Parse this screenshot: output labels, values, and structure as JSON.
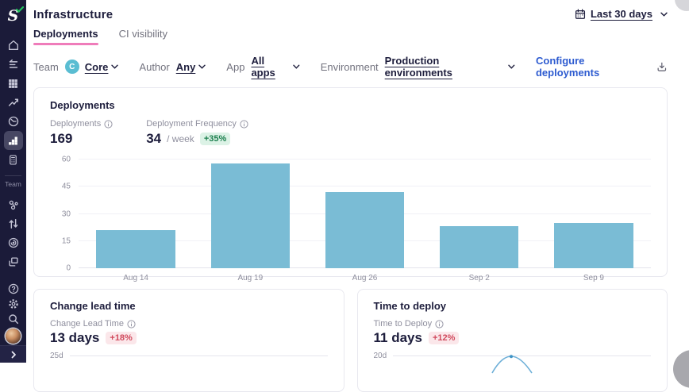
{
  "colors": {
    "sidebar_bg": "#1b1b39",
    "sidebar_active_bg": "#474763",
    "accent_pink": "#ef7cba",
    "bar_blue": "#7abcd5",
    "line_blue": "#6fb0d8",
    "link_blue": "#2d5bd0",
    "navy_text": "#1d1d3c",
    "chip_teal": "#5abdd2",
    "positive_text": "#1b7f4d",
    "positive_bg": "#dcf2e6",
    "negative_text": "#d14b5e",
    "negative_bg": "#fbe7ea",
    "logo_check_green": "#21c45d"
  },
  "sidebar": {
    "logo_letter": "S",
    "team_section_label": "Team",
    "nav_icons": [
      "home",
      "flows",
      "apps-grid",
      "trends",
      "velocity",
      "deployments",
      "calculator"
    ],
    "active_nav_icon": "deployments",
    "team_icons": [
      "teams",
      "pull-requests",
      "goals",
      "workspaces"
    ],
    "bottom_icons": [
      "help",
      "settings",
      "search",
      "avatar",
      "expand"
    ]
  },
  "header": {
    "title": "Infrastructure",
    "tabs": [
      {
        "label": "Deployments",
        "active": true
      },
      {
        "label": "CI visibility",
        "active": false
      }
    ],
    "date_range_label": "Last 30 days"
  },
  "filters": {
    "team_label": "Team",
    "team_chip_initial": "C",
    "team_value": "Core",
    "author_label": "Author",
    "author_value": "Any",
    "app_label": "App",
    "app_value": "All apps",
    "environment_label": "Environment",
    "environment_value": "Production environments",
    "configure_link_label": "Configure deployments"
  },
  "deployments_card": {
    "title": "Deployments",
    "deployments_label": "Deployments",
    "deployments_value": "169",
    "frequency_label": "Deployment Frequency",
    "frequency_value": "34",
    "frequency_unit": "/ week",
    "frequency_badge": "+35%"
  },
  "chart_data": [
    {
      "id": "deployments-bar",
      "type": "bar",
      "title": "Deployments",
      "categories": [
        "Aug 14",
        "Aug 19",
        "Aug 26",
        "Sep 2",
        "Sep 9"
      ],
      "values": [
        21,
        58,
        42,
        23,
        25
      ],
      "ylim": [
        0,
        60
      ],
      "yticks": [
        0,
        15,
        30,
        45,
        60
      ],
      "xlabel": "",
      "ylabel": "",
      "grid": true,
      "legend": false,
      "bar_color": "#7abcd5"
    },
    {
      "id": "change-lead-time-line",
      "type": "line",
      "title": "Change lead time",
      "visible_yticks": [
        "25d"
      ],
      "clipped": true
    },
    {
      "id": "time-to-deploy-line",
      "type": "line",
      "title": "Time to deploy",
      "visible_yticks": [
        "20d"
      ],
      "visible_peak_just_below": "20d",
      "clipped": true
    }
  ],
  "lead_time_card": {
    "title": "Change lead time",
    "metric_label": "Change Lead Time",
    "value": "13 days",
    "badge": "+18%",
    "axis_tick_label": "25d"
  },
  "deploy_time_card": {
    "title": "Time to deploy",
    "metric_label": "Time to Deploy",
    "value": "11 days",
    "badge": "+12%",
    "axis_tick_label": "20d"
  }
}
